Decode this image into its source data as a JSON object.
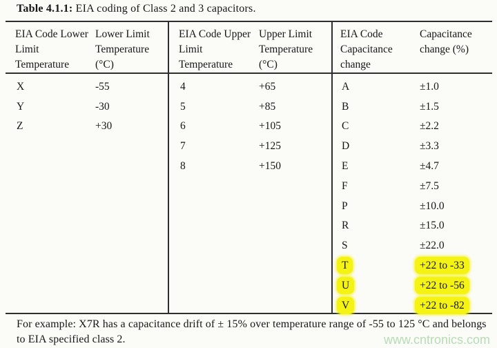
{
  "caption": {
    "number": "Table 4.1.1:",
    "text": " EIA coding of Class 2 and 3 capacitors."
  },
  "table": {
    "groups": [
      {
        "headers": [
          "EIA Code Lower Limit Temperature",
          "Lower Limit Temperature (°C)"
        ],
        "rows": [
          {
            "code": "X",
            "value": "-55"
          },
          {
            "code": "Y",
            "value": "-30"
          },
          {
            "code": "Z",
            "value": "+30"
          }
        ]
      },
      {
        "headers": [
          "EIA Code Upper Limit Temperature",
          "Upper Limit Temperature (°C)"
        ],
        "rows": [
          {
            "code": "4",
            "value": "+65"
          },
          {
            "code": "5",
            "value": "+85"
          },
          {
            "code": "6",
            "value": "+105"
          },
          {
            "code": "7",
            "value": "+125"
          },
          {
            "code": "8",
            "value": "+150"
          }
        ]
      },
      {
        "headers": [
          "EIA Code Capacitance change",
          "Capacitance change (%)"
        ],
        "rows": [
          {
            "code": "A",
            "value": "±1.0"
          },
          {
            "code": "B",
            "value": "±1.5"
          },
          {
            "code": "C",
            "value": "±2.2"
          },
          {
            "code": "D",
            "value": "±3.3"
          },
          {
            "code": "E",
            "value": "±4.7"
          },
          {
            "code": "F",
            "value": "±7.5"
          },
          {
            "code": "P",
            "value": "±10.0"
          },
          {
            "code": "R",
            "value": "±15.0"
          },
          {
            "code": "S",
            "value": "±22.0"
          },
          {
            "code": "T",
            "value": "+22 to -33",
            "highlighted": true
          },
          {
            "code": "U",
            "value": "+22 to -56",
            "highlighted": true
          },
          {
            "code": "V",
            "value": "+22 to -82",
            "highlighted": true
          }
        ]
      }
    ]
  },
  "footer": {
    "note": "For example: X7R has a capacitance drift of ± 15% over temperature range of -55 to 125 °C and belongs to EIA specified class 2."
  },
  "watermark": {
    "text": "www.cntronics.com"
  },
  "colors": {
    "line": "#2e2e2e",
    "text": "#161616",
    "highlight": "#f5f314",
    "watermark": "#b7dcb5",
    "background": "#fbfbf8"
  }
}
